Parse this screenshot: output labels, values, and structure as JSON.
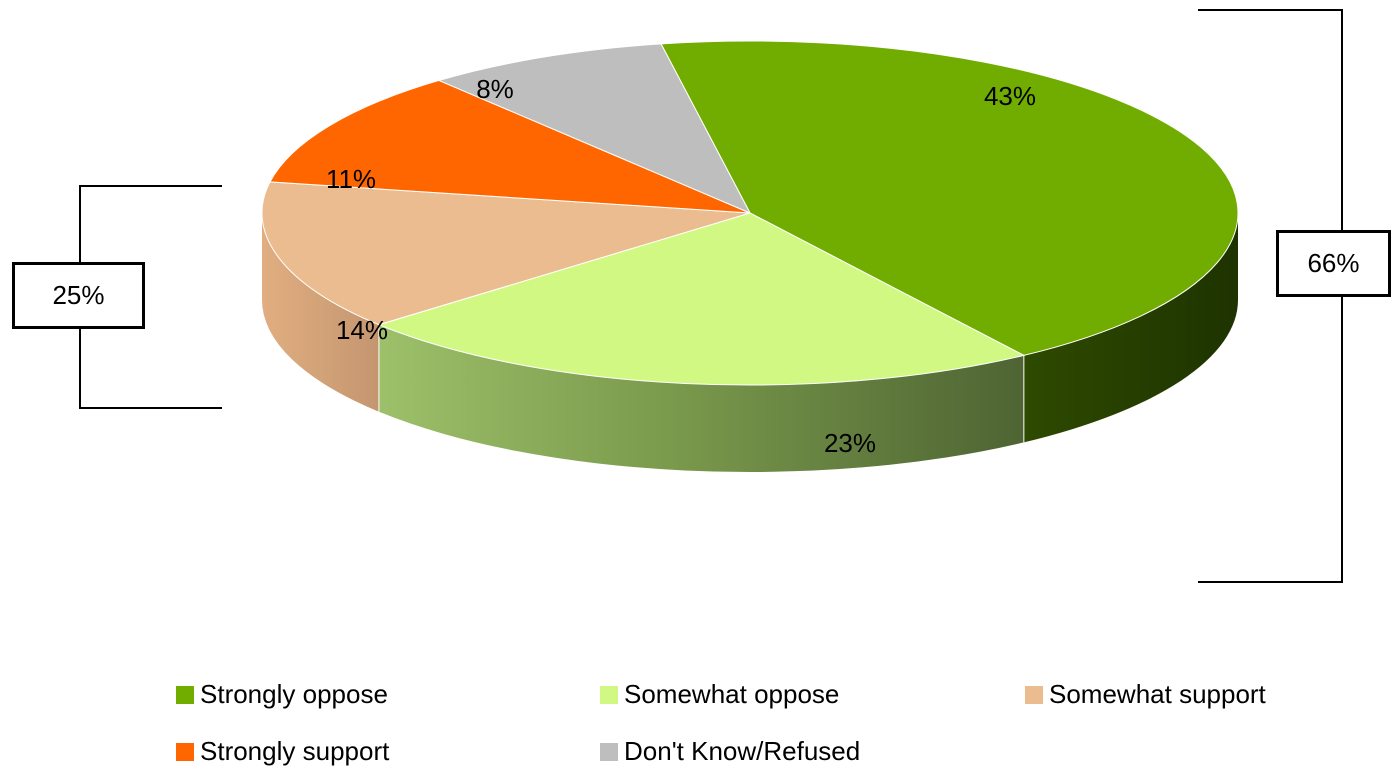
{
  "chart_data": {
    "type": "pie",
    "title": "",
    "categories": [
      "Strongly oppose",
      "Somewhat oppose",
      "Somewhat support",
      "Strongly support",
      "Don't Know/Refused"
    ],
    "values": [
      43,
      23,
      14,
      11,
      8
    ],
    "data_labels": [
      "43%",
      "23%",
      "14%",
      "11%",
      "8%"
    ],
    "colors": [
      "#70AD00",
      "#D2F884",
      "#EBBC8F",
      "#FF6600",
      "#BEBEBE"
    ],
    "legend_position": "bottom",
    "group_brackets": [
      {
        "label": "66%",
        "side": "right",
        "members": [
          "Strongly oppose",
          "Somewhat oppose"
        ]
      },
      {
        "label": "25%",
        "side": "left",
        "members": [
          "Somewhat support",
          "Strongly support"
        ]
      }
    ]
  }
}
